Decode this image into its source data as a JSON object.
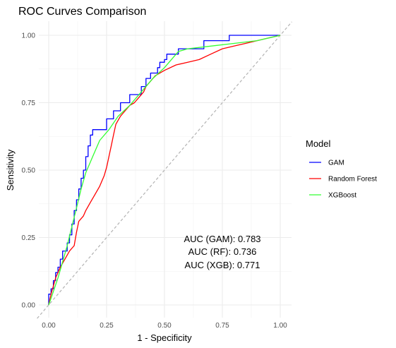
{
  "chart_data": {
    "type": "line",
    "title": "ROC Curves Comparison",
    "xlabel": "1 - Specificity",
    "ylabel": "Sensitivity",
    "xlim": [
      0,
      1
    ],
    "ylim": [
      0,
      1
    ],
    "x_ticks": [
      0,
      0.25,
      0.5,
      0.75,
      1
    ],
    "y_ticks": [
      0,
      0.25,
      0.5,
      0.75,
      1
    ],
    "x_tick_labels": [
      "0.00",
      "0.25",
      "0.50",
      "0.75",
      "1.00"
    ],
    "y_tick_labels": [
      "0.00",
      "0.25",
      "0.50",
      "0.75",
      "1.00"
    ],
    "grid": true,
    "legend_title": "Model",
    "legend_position": "right",
    "diagonal_color": "#b3b3b3",
    "annotations": [
      "AUC (GAM): 0.783",
      "AUC (RF): 0.736",
      "AUC (XGB): 0.771"
    ],
    "series": [
      {
        "name": "GAM",
        "color": "#0000ff",
        "step": true,
        "points": [
          [
            0,
            0
          ],
          [
            0,
            0.04
          ],
          [
            0.01,
            0.06
          ],
          [
            0.02,
            0.09
          ],
          [
            0.03,
            0.12
          ],
          [
            0.04,
            0.14
          ],
          [
            0.05,
            0.17
          ],
          [
            0.06,
            0.2
          ],
          [
            0.08,
            0.23
          ],
          [
            0.09,
            0.26
          ],
          [
            0.1,
            0.3
          ],
          [
            0.11,
            0.35
          ],
          [
            0.12,
            0.39
          ],
          [
            0.13,
            0.43
          ],
          [
            0.14,
            0.47
          ],
          [
            0.15,
            0.5
          ],
          [
            0.16,
            0.55
          ],
          [
            0.17,
            0.59
          ],
          [
            0.18,
            0.63
          ],
          [
            0.19,
            0.65
          ],
          [
            0.25,
            0.69
          ],
          [
            0.28,
            0.72
          ],
          [
            0.31,
            0.75
          ],
          [
            0.35,
            0.78
          ],
          [
            0.4,
            0.81
          ],
          [
            0.42,
            0.84
          ],
          [
            0.44,
            0.86
          ],
          [
            0.47,
            0.88
          ],
          [
            0.48,
            0.9
          ],
          [
            0.5,
            0.91
          ],
          [
            0.51,
            0.93
          ],
          [
            0.56,
            0.95
          ],
          [
            0.67,
            0.98
          ],
          [
            0.78,
            1
          ],
          [
            1,
            1
          ]
        ]
      },
      {
        "name": "Random Forest",
        "color": "#ff0000",
        "step": false,
        "points": [
          [
            0,
            0
          ],
          [
            0.01,
            0.04
          ],
          [
            0.02,
            0.07
          ],
          [
            0.03,
            0.1
          ],
          [
            0.05,
            0.14
          ],
          [
            0.07,
            0.17
          ],
          [
            0.09,
            0.2
          ],
          [
            0.11,
            0.22
          ],
          [
            0.12,
            0.27
          ],
          [
            0.13,
            0.31
          ],
          [
            0.15,
            0.33
          ],
          [
            0.16,
            0.35
          ],
          [
            0.18,
            0.38
          ],
          [
            0.2,
            0.41
          ],
          [
            0.22,
            0.44
          ],
          [
            0.24,
            0.48
          ],
          [
            0.25,
            0.51
          ],
          [
            0.26,
            0.55
          ],
          [
            0.27,
            0.59
          ],
          [
            0.28,
            0.63
          ],
          [
            0.29,
            0.67
          ],
          [
            0.31,
            0.7
          ],
          [
            0.33,
            0.72
          ],
          [
            0.35,
            0.74
          ],
          [
            0.37,
            0.75
          ],
          [
            0.39,
            0.77
          ],
          [
            0.41,
            0.79
          ],
          [
            0.42,
            0.81
          ],
          [
            0.44,
            0.83
          ],
          [
            0.46,
            0.85
          ],
          [
            0.5,
            0.87
          ],
          [
            0.55,
            0.89
          ],
          [
            0.6,
            0.9
          ],
          [
            0.65,
            0.91
          ],
          [
            0.7,
            0.93
          ],
          [
            0.75,
            0.95
          ],
          [
            0.8,
            0.96
          ],
          [
            0.85,
            0.97
          ],
          [
            0.9,
            0.98
          ],
          [
            0.95,
            0.99
          ],
          [
            1,
            1
          ]
        ]
      },
      {
        "name": "XGBoost",
        "color": "#33ff33",
        "step": false,
        "points": [
          [
            0,
            0
          ],
          [
            0.02,
            0.05
          ],
          [
            0.04,
            0.1
          ],
          [
            0.06,
            0.16
          ],
          [
            0.08,
            0.22
          ],
          [
            0.1,
            0.29
          ],
          [
            0.12,
            0.36
          ],
          [
            0.14,
            0.43
          ],
          [
            0.16,
            0.49
          ],
          [
            0.19,
            0.55
          ],
          [
            0.22,
            0.61
          ],
          [
            0.26,
            0.65
          ],
          [
            0.3,
            0.7
          ],
          [
            0.35,
            0.74
          ],
          [
            0.4,
            0.79
          ],
          [
            0.45,
            0.84
          ],
          [
            0.5,
            0.88
          ],
          [
            0.56,
            0.94
          ],
          [
            0.6,
            0.95
          ],
          [
            0.7,
            0.96
          ],
          [
            0.8,
            0.97
          ],
          [
            0.9,
            0.98
          ],
          [
            1,
            1
          ]
        ]
      }
    ]
  }
}
